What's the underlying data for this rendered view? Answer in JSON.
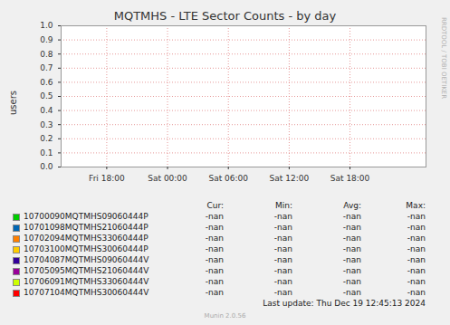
{
  "chart_data": {
    "type": "line",
    "title": "MQTMHS - LTE Sector Counts - by day",
    "ylabel": "users",
    "x": [
      18,
      24,
      30,
      36,
      42
    ],
    "xlim": [
      13.5,
      49.5
    ],
    "xticks": [
      {
        "value": 18,
        "label": "Fri 18:00"
      },
      {
        "value": 24,
        "label": "Sat 00:00"
      },
      {
        "value": 30,
        "label": "Sat 06:00"
      },
      {
        "value": 36,
        "label": "Sat 12:00"
      },
      {
        "value": 42,
        "label": "Sat 18:00"
      }
    ],
    "ylim": [
      0,
      1
    ],
    "yticks": [
      {
        "value": 0,
        "label": "0.0"
      },
      {
        "value": 0.1,
        "label": "0.1"
      },
      {
        "value": 0.2,
        "label": "0.2"
      },
      {
        "value": 0.3,
        "label": "0.3"
      },
      {
        "value": 0.4,
        "label": "0.4"
      },
      {
        "value": 0.5,
        "label": "0.5"
      },
      {
        "value": 0.6,
        "label": "0.6"
      },
      {
        "value": 0.7,
        "label": "0.7"
      },
      {
        "value": 0.8,
        "label": "0.8"
      },
      {
        "value": 0.9,
        "label": "0.9"
      },
      {
        "value": 1,
        "label": "1.0"
      }
    ],
    "grid": true,
    "legend_columns": [
      "Cur:",
      "Min:",
      "Avg:",
      "Max:"
    ],
    "series": [
      {
        "name": "10700090MQTMHS09060444P",
        "color": "#00cc00",
        "values": [
          null,
          null,
          null,
          null,
          null
        ],
        "stats": [
          "-nan",
          "-nan",
          "-nan",
          "-nan"
        ]
      },
      {
        "name": "10701098MQTMHS21060444P",
        "color": "#0066b3",
        "values": [
          null,
          null,
          null,
          null,
          null
        ],
        "stats": [
          "-nan",
          "-nan",
          "-nan",
          "-nan"
        ]
      },
      {
        "name": "10702094MQTMHS33060444P",
        "color": "#ff8000",
        "values": [
          null,
          null,
          null,
          null,
          null
        ],
        "stats": [
          "-nan",
          "-nan",
          "-nan",
          "-nan"
        ]
      },
      {
        "name": "10703100MQTMHS30060444P",
        "color": "#ffcc00",
        "values": [
          null,
          null,
          null,
          null,
          null
        ],
        "stats": [
          "-nan",
          "-nan",
          "-nan",
          "-nan"
        ]
      },
      {
        "name": "10704087MQTMHS09060444V",
        "color": "#330099",
        "values": [
          null,
          null,
          null,
          null,
          null
        ],
        "stats": [
          "-nan",
          "-nan",
          "-nan",
          "-nan"
        ]
      },
      {
        "name": "10705095MQTMHS21060444V",
        "color": "#990099",
        "values": [
          null,
          null,
          null,
          null,
          null
        ],
        "stats": [
          "-nan",
          "-nan",
          "-nan",
          "-nan"
        ]
      },
      {
        "name": "10706091MQTMHS33060444V",
        "color": "#ccff00",
        "values": [
          null,
          null,
          null,
          null,
          null
        ],
        "stats": [
          "-nan",
          "-nan",
          "-nan",
          "-nan"
        ]
      },
      {
        "name": "10707104MQTMHS30060444V",
        "color": "#ff0000",
        "values": [
          null,
          null,
          null,
          null,
          null
        ],
        "stats": [
          "-nan",
          "-nan",
          "-nan",
          "-nan"
        ]
      }
    ],
    "last_update": "Last update: Thu Dec 19 12:45:13 2024",
    "footer": "Munin 2.0.56",
    "watermark": "RRDTOOL / TOBI OETIKER"
  }
}
